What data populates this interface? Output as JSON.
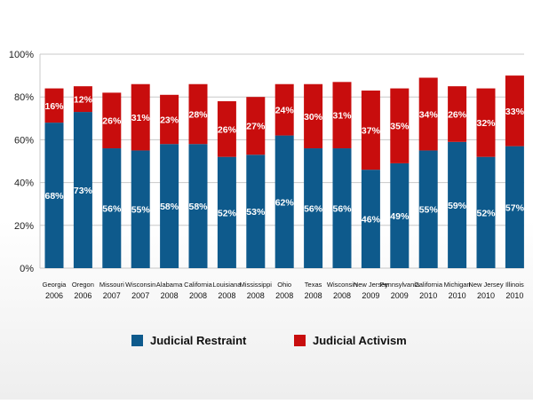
{
  "chart_data": {
    "type": "bar",
    "stacked": true,
    "categories": [
      [
        "Georgia",
        "2006"
      ],
      [
        "Oregon",
        "2006"
      ],
      [
        "Missouri",
        "2007"
      ],
      [
        "Wisconsin",
        "2007"
      ],
      [
        "Alabama",
        "2008"
      ],
      [
        "California",
        "2008"
      ],
      [
        "Louisiana",
        "2008"
      ],
      [
        "Mississippi",
        "2008"
      ],
      [
        "Ohio",
        "2008"
      ],
      [
        "Texas",
        "2008"
      ],
      [
        "Wisconsin",
        "2008"
      ],
      [
        "New Jersey",
        "2009"
      ],
      [
        "Pennsylvania",
        "2009"
      ],
      [
        "California",
        "2010"
      ],
      [
        "Michigan",
        "2010"
      ],
      [
        "New Jersey",
        "2010"
      ],
      [
        "Illinois",
        "2010"
      ]
    ],
    "series": [
      {
        "name": "Judicial Restraint",
        "color": "#0e5a8c",
        "values": [
          68,
          73,
          56,
          55,
          58,
          58,
          52,
          53,
          62,
          56,
          56,
          46,
          49,
          55,
          59,
          52,
          57
        ],
        "labels": [
          "68%",
          "73%",
          "56%",
          "55%",
          "58%",
          "58%",
          "52%",
          "53%",
          "62%",
          "56%",
          "56%",
          "46%",
          "49%",
          "55%",
          "59%",
          "52%",
          "57%"
        ]
      },
      {
        "name": "Judicial Activism",
        "color": "#c80d0d",
        "values": [
          16,
          12,
          26,
          31,
          23,
          28,
          26,
          27,
          24,
          30,
          31,
          37,
          35,
          34,
          26,
          32,
          33
        ],
        "labels": [
          "16%",
          "12%",
          "26%",
          "31%",
          "23%",
          "28%",
          "26%",
          "27%",
          "24%",
          "30%",
          "31%",
          "37%",
          "35%",
          "34%",
          "26%",
          "32%",
          "33%"
        ]
      }
    ],
    "ylim": [
      0,
      100
    ],
    "yticks": [
      0,
      20,
      40,
      60,
      80,
      100
    ],
    "ytick_labels": [
      "0%",
      "20%",
      "40%",
      "60%",
      "80%",
      "100%"
    ],
    "grid": true,
    "legend": "bottom",
    "title": "",
    "xlabel": "",
    "ylabel": ""
  }
}
